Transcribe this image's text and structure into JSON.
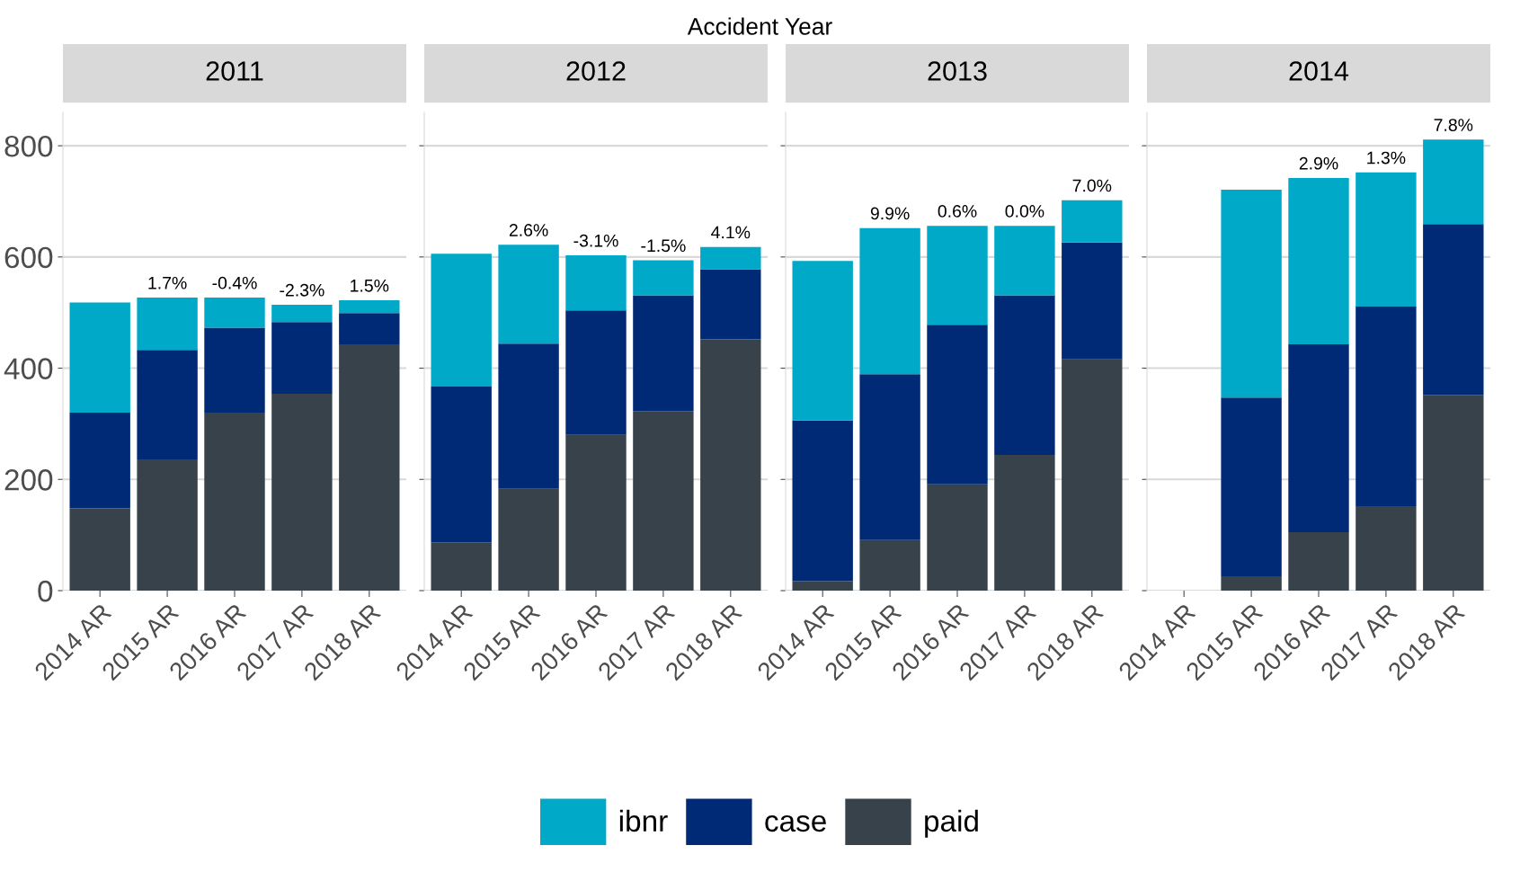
{
  "chart_data": [
    {
      "type": "bar",
      "title": "2011",
      "stacked": true,
      "legend": "bottom",
      "grid": "y",
      "categories": [
        "2014 AR",
        "2015 AR",
        "2016 AR",
        "2017 AR",
        "2018 AR"
      ],
      "ylim": [
        0,
        860
      ],
      "yticks": [
        0,
        200,
        400,
        600,
        800
      ],
      "annotations": [
        "Accident Year",
        {
          "text": "1.7%",
          "x": "2015 AR",
          "y": 527
        },
        {
          "text": "-0.4%",
          "x": "2016 AR",
          "y": 527
        },
        {
          "text": "-2.3%",
          "x": "2017 AR",
          "y": 514
        },
        {
          "text": "1.5%",
          "x": "2018 AR",
          "y": 522
        }
      ],
      "series": [
        {
          "name": "paid",
          "color": "#37424a",
          "values": [
            148,
            236,
            320,
            354,
            443
          ]
        },
        {
          "name": "case",
          "color": "#002a76",
          "values": [
            172,
            197,
            153,
            129,
            56
          ]
        },
        {
          "name": "ibnr",
          "color": "#00a9c8",
          "values": [
            198,
            94,
            54,
            31,
            23
          ]
        }
      ]
    },
    {
      "type": "bar",
      "title": "2012",
      "stacked": true,
      "grid": "y",
      "tick_labels": "x",
      "categories": [
        "2014 AR",
        "2015 AR",
        "2016 AR",
        "2017 AR",
        "2018 AR"
      ],
      "ylim": [
        0,
        860
      ],
      "yticks": [
        0,
        200,
        400,
        600,
        800
      ],
      "annotations": [
        {
          "text": "2.6%",
          "x": "2015 AR",
          "y": 622
        },
        {
          "text": "-3.1%",
          "x": "2016 AR",
          "y": 603
        },
        {
          "text": "-1.5%",
          "x": "2017 AR",
          "y": 594
        },
        {
          "text": "4.1%",
          "x": "2018 AR",
          "y": 618
        }
      ],
      "series": [
        {
          "color": "#37424a",
          "values": [
            87,
            183,
            280,
            323,
            452
          ]
        },
        {
          "color": "#002a76",
          "values": [
            280,
            261,
            224,
            208,
            126
          ]
        },
        {
          "color": "#00a9c8",
          "values": [
            239,
            178,
            99,
            63,
            40
          ]
        }
      ]
    },
    {
      "type": "bar",
      "title": "2013",
      "stacked": true,
      "grid": "y",
      "tick_labels": "x",
      "categories": [
        "2014 AR",
        "2015 AR",
        "2016 AR",
        "2017 AR",
        "2018 AR"
      ],
      "ylim": [
        0,
        860
      ],
      "yticks": [
        0,
        200,
        400,
        600,
        800
      ],
      "annotations": [
        {
          "text": "9.9%",
          "x": "2015 AR",
          "y": 652
        },
        {
          "text": "0.6%",
          "x": "2016 AR",
          "y": 656
        },
        {
          "text": "0.0%",
          "x": "2017 AR",
          "y": 656
        },
        {
          "text": "7.0%",
          "x": "2018 AR",
          "y": 702
        }
      ],
      "series": [
        {
          "color": "#37424a",
          "values": [
            17,
            91,
            191,
            244,
            416
          ]
        },
        {
          "color": "#002a76",
          "values": [
            289,
            298,
            287,
            287,
            210
          ]
        },
        {
          "color": "#00a9c8",
          "values": [
            287,
            263,
            178,
            125,
            76
          ]
        }
      ]
    },
    {
      "type": "bar",
      "title": "2014",
      "stacked": true,
      "grid": "y",
      "tick_labels": "x",
      "categories": [
        "2014 AR",
        "2015 AR",
        "2016 AR",
        "2017 AR",
        "2018 AR"
      ],
      "ylim": [
        0,
        860
      ],
      "yticks": [
        0,
        200,
        400,
        600,
        800
      ],
      "annotations": [
        {
          "text": "2.9%",
          "x": "2016 AR",
          "y": 742
        },
        {
          "text": "1.3%",
          "x": "2017 AR",
          "y": 752
        },
        {
          "text": "7.8%",
          "x": "2018 AR",
          "y": 811
        }
      ],
      "series": [
        {
          "color": "#37424a",
          "values": [
            null,
            26,
            105,
            152,
            352
          ]
        },
        {
          "color": "#002a76",
          "values": [
            null,
            321,
            338,
            359,
            307
          ]
        },
        {
          "color": "#00a9c8",
          "values": [
            null,
            374,
            299,
            241,
            152
          ]
        }
      ]
    }
  ]
}
